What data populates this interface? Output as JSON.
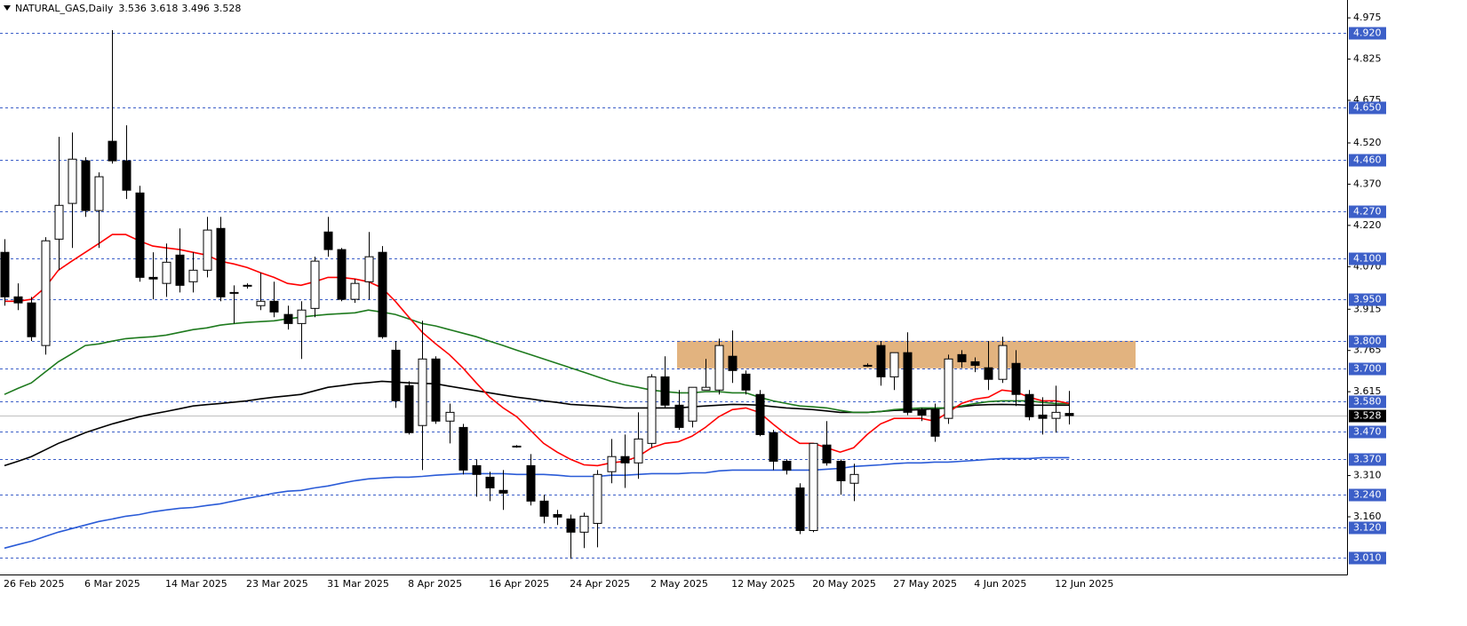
{
  "chart_data": {
    "type": "candlestick",
    "title": "NATURAL_GAS,Daily",
    "categories": [
      "26 Feb 2025",
      null,
      null,
      null,
      null,
      null,
      "6 Mar 2025",
      null,
      null,
      null,
      null,
      null,
      "14 Mar 2025",
      null,
      null,
      null,
      null,
      null,
      "23 Mar 2025",
      null,
      null,
      null,
      null,
      null,
      "31 Mar 2025",
      null,
      null,
      null,
      null,
      null,
      "8 Apr 2025",
      null,
      null,
      null,
      null,
      null,
      "16 Apr 2025",
      null,
      null,
      null,
      null,
      null,
      "24 Apr 2025",
      null,
      null,
      null,
      null,
      null,
      "2 May 2025",
      null,
      null,
      null,
      null,
      null,
      "12 May 2025",
      null,
      null,
      null,
      null,
      null,
      "20 May 2025",
      null,
      null,
      null,
      null,
      null,
      "27 May 2025",
      null,
      null,
      null,
      null,
      null,
      "4 Jun 2025",
      null,
      null,
      null,
      null,
      null,
      "12 Jun 2025",
      null
    ],
    "open": [
      4.122,
      3.96,
      3.938,
      3.783,
      4.17,
      4.3,
      4.455,
      4.274,
      4.526,
      4.455,
      4.338,
      4.031,
      4.009,
      4.112,
      4.015,
      4.057,
      4.209,
      3.976,
      4.002,
      3.928,
      3.944,
      3.896,
      3.863,
      3.918,
      4.196,
      4.132,
      3.951,
      4.015,
      4.122,
      3.766,
      3.637,
      3.492,
      3.734,
      3.508,
      3.485,
      3.346,
      3.304,
      3.256,
      3.417,
      3.346,
      3.217,
      3.168,
      3.152,
      3.104,
      3.136,
      3.324,
      3.379,
      3.356,
      3.427,
      3.669,
      3.566,
      3.508,
      3.621,
      3.621,
      3.744,
      3.679,
      3.605,
      3.466,
      3.362,
      3.265,
      3.11,
      3.421,
      3.362,
      3.282,
      3.711,
      3.783,
      3.669,
      3.757,
      3.55,
      3.55,
      3.518,
      3.75,
      3.724,
      3.702,
      3.66,
      3.718,
      3.605,
      3.53,
      3.518,
      3.536
    ],
    "high": [
      4.17,
      4.009,
      3.96,
      4.177,
      4.542,
      4.558,
      4.468,
      4.413,
      4.93,
      4.584,
      4.364,
      4.122,
      4.154,
      4.209,
      4.122,
      4.251,
      4.251,
      4.002,
      4.009,
      4.048,
      4.015,
      3.928,
      3.944,
      4.106,
      4.251,
      4.138,
      4.025,
      4.196,
      4.145,
      3.799,
      3.653,
      3.873,
      3.744,
      3.572,
      3.498,
      3.369,
      3.324,
      3.33,
      3.421,
      3.388,
      3.24,
      3.185,
      3.168,
      3.175,
      3.33,
      3.443,
      3.459,
      3.54,
      3.679,
      3.744,
      3.621,
      3.631,
      3.734,
      3.808,
      3.838,
      3.692,
      3.621,
      3.476,
      3.369,
      3.282,
      3.427,
      3.508,
      3.369,
      3.353,
      3.718,
      3.799,
      3.757,
      3.831,
      3.556,
      3.572,
      3.75,
      3.766,
      3.74,
      3.799,
      3.815,
      3.766,
      3.621,
      3.595,
      3.637,
      3.618
    ],
    "low": [
      3.928,
      3.912,
      3.799,
      3.75,
      4.057,
      4.138,
      4.251,
      4.138,
      4.445,
      4.316,
      4.015,
      3.951,
      3.96,
      3.976,
      3.976,
      4.031,
      3.944,
      3.863,
      3.99,
      3.912,
      3.886,
      3.841,
      3.734,
      3.886,
      4.106,
      3.944,
      3.938,
      3.951,
      3.808,
      3.556,
      3.459,
      3.33,
      3.498,
      3.427,
      3.314,
      3.233,
      3.217,
      3.185,
      3.411,
      3.201,
      3.136,
      3.13,
      3.007,
      3.046,
      3.049,
      3.282,
      3.265,
      3.298,
      3.411,
      3.556,
      3.476,
      3.485,
      3.621,
      3.605,
      3.647,
      3.605,
      3.453,
      3.33,
      3.314,
      3.097,
      3.104,
      3.346,
      3.24,
      3.217,
      3.705,
      3.637,
      3.621,
      3.53,
      3.508,
      3.433,
      3.498,
      3.702,
      3.686,
      3.621,
      3.647,
      3.563,
      3.511,
      3.459,
      3.466,
      3.496
    ],
    "close": [
      3.96,
      3.938,
      3.815,
      4.164,
      4.293,
      4.461,
      4.274,
      4.397,
      4.455,
      4.348,
      4.031,
      4.025,
      4.086,
      4.002,
      4.057,
      4.203,
      3.96,
      3.973,
      3.999,
      3.944,
      3.905,
      3.863,
      3.912,
      4.09,
      4.132,
      3.951,
      4.009,
      4.106,
      3.815,
      3.582,
      3.466,
      3.734,
      3.508,
      3.54,
      3.33,
      3.314,
      3.265,
      3.246,
      3.417,
      3.217,
      3.162,
      3.159,
      3.104,
      3.162,
      3.314,
      3.379,
      3.356,
      3.443,
      3.669,
      3.566,
      3.485,
      3.631,
      3.631,
      3.783,
      3.692,
      3.621,
      3.459,
      3.362,
      3.33,
      3.11,
      3.427,
      3.356,
      3.291,
      3.314,
      3.711,
      3.669,
      3.757,
      3.54,
      3.53,
      3.453,
      3.734,
      3.724,
      3.711,
      3.66,
      3.783,
      3.605,
      3.524,
      3.518,
      3.54,
      3.528
    ],
    "moving_averages": [
      {
        "color": "#2a5bd7",
        "values": [
          3.046,
          3.059,
          3.071,
          3.088,
          3.104,
          3.117,
          3.13,
          3.143,
          3.152,
          3.162,
          3.168,
          3.178,
          3.185,
          3.191,
          3.194,
          3.201,
          3.207,
          3.217,
          3.227,
          3.236,
          3.246,
          3.253,
          3.256,
          3.265,
          3.272,
          3.282,
          3.291,
          3.298,
          3.301,
          3.304,
          3.304,
          3.307,
          3.311,
          3.314,
          3.317,
          3.317,
          3.317,
          3.317,
          3.314,
          3.314,
          3.314,
          3.311,
          3.307,
          3.307,
          3.307,
          3.311,
          3.311,
          3.314,
          3.317,
          3.317,
          3.317,
          3.32,
          3.32,
          3.327,
          3.33,
          3.33,
          3.33,
          3.33,
          3.33,
          3.33,
          3.33,
          3.333,
          3.336,
          3.343,
          3.346,
          3.349,
          3.353,
          3.356,
          3.356,
          3.359,
          3.359,
          3.362,
          3.365,
          3.369,
          3.372,
          3.372,
          3.372,
          3.375,
          3.375,
          3.375
        ]
      },
      {
        "color": "#000000",
        "values": [
          3.346,
          3.362,
          3.379,
          3.403,
          3.427,
          3.446,
          3.466,
          3.482,
          3.498,
          3.511,
          3.524,
          3.534,
          3.543,
          3.553,
          3.563,
          3.568,
          3.572,
          3.577,
          3.582,
          3.589,
          3.595,
          3.6,
          3.605,
          3.618,
          3.631,
          3.637,
          3.644,
          3.648,
          3.653,
          3.65,
          3.647,
          3.645,
          3.644,
          3.635,
          3.627,
          3.619,
          3.611,
          3.603,
          3.595,
          3.589,
          3.582,
          3.576,
          3.569,
          3.566,
          3.563,
          3.56,
          3.556,
          3.556,
          3.556,
          3.556,
          3.556,
          3.56,
          3.563,
          3.566,
          3.569,
          3.568,
          3.566,
          3.561,
          3.556,
          3.553,
          3.55,
          3.545,
          3.54,
          3.54,
          3.54,
          3.543,
          3.547,
          3.548,
          3.55,
          3.553,
          3.556,
          3.561,
          3.566,
          3.568,
          3.569,
          3.568,
          3.566,
          3.566,
          3.566,
          3.566
        ]
      },
      {
        "color": "#1e7a1e",
        "values": [
          3.605,
          3.627,
          3.647,
          3.686,
          3.724,
          3.753,
          3.783,
          3.789,
          3.799,
          3.808,
          3.812,
          3.815,
          3.821,
          3.831,
          3.841,
          3.847,
          3.857,
          3.863,
          3.867,
          3.87,
          3.873,
          3.88,
          3.886,
          3.892,
          3.896,
          3.899,
          3.902,
          3.912,
          3.905,
          3.896,
          3.88,
          3.863,
          3.854,
          3.841,
          3.828,
          3.815,
          3.799,
          3.783,
          3.766,
          3.75,
          3.734,
          3.718,
          3.702,
          3.686,
          3.669,
          3.653,
          3.64,
          3.631,
          3.621,
          3.615,
          3.611,
          3.611,
          3.615,
          3.615,
          3.611,
          3.611,
          3.595,
          3.582,
          3.572,
          3.563,
          3.56,
          3.556,
          3.547,
          3.54,
          3.54,
          3.543,
          3.55,
          3.553,
          3.556,
          3.556,
          3.556,
          3.563,
          3.572,
          3.579,
          3.582,
          3.582,
          3.582,
          3.576,
          3.572,
          3.572
        ]
      },
      {
        "color": "#ff0000",
        "values": [
          3.944,
          3.944,
          3.951,
          3.993,
          4.057,
          4.09,
          4.122,
          4.154,
          4.187,
          4.187,
          4.164,
          4.145,
          4.138,
          4.132,
          4.122,
          4.112,
          4.09,
          4.08,
          4.067,
          4.048,
          4.031,
          4.009,
          4.002,
          4.015,
          4.031,
          4.031,
          4.025,
          4.015,
          3.993,
          3.944,
          3.886,
          3.831,
          3.789,
          3.75,
          3.702,
          3.647,
          3.595,
          3.556,
          3.524,
          3.476,
          3.427,
          3.395,
          3.369,
          3.349,
          3.346,
          3.356,
          3.362,
          3.379,
          3.411,
          3.427,
          3.433,
          3.453,
          3.485,
          3.524,
          3.55,
          3.556,
          3.54,
          3.498,
          3.459,
          3.427,
          3.427,
          3.411,
          3.395,
          3.411,
          3.459,
          3.498,
          3.518,
          3.518,
          3.518,
          3.508,
          3.54,
          3.572,
          3.588,
          3.595,
          3.621,
          3.615,
          3.595,
          3.582,
          3.582,
          3.572
        ]
      }
    ],
    "up_color": "#ffffff",
    "down_color": "#000000",
    "zone": {
      "low": 3.7,
      "high": 3.8,
      "color": "#e2b37f"
    },
    "levels": [
      {
        "value": 4.92,
        "label": "4.920"
      },
      {
        "value": 4.65,
        "label": "4.650"
      },
      {
        "value": 4.46,
        "label": "4.460"
      },
      {
        "value": 4.27,
        "label": "4.270"
      },
      {
        "value": 4.1,
        "label": "4.100"
      },
      {
        "value": 3.95,
        "label": "3.950"
      },
      {
        "value": 3.8,
        "label": "3.800"
      },
      {
        "value": 3.7,
        "label": "3.700"
      },
      {
        "value": 3.58,
        "label": "3.580"
      },
      {
        "value": 3.47,
        "label": "3.470"
      },
      {
        "value": 3.37,
        "label": "3.370"
      },
      {
        "value": 3.24,
        "label": "3.240"
      },
      {
        "value": 3.12,
        "label": "3.120"
      },
      {
        "value": 3.01,
        "label": "3.010"
      }
    ],
    "level_color": "#3c5fc8",
    "ylim": [
      2.95,
      5.04
    ],
    "yticks": [
      4.975,
      4.825,
      4.675,
      {
        "value": 4.52,
        "label": "4.520"
      },
      {
        "value": 4.37,
        "label": "4.370"
      },
      {
        "value": 4.22,
        "label": "4.220"
      },
      {
        "value": 4.07,
        "label": "4.070"
      },
      3.915,
      3.765,
      3.615,
      {
        "value": 3.31,
        "label": "3.310"
      },
      {
        "value": 3.16,
        "label": "3.160"
      }
    ]
  }
}
